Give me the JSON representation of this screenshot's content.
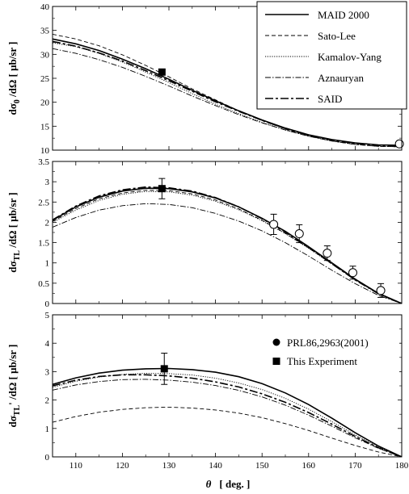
{
  "chart_data": [
    {
      "type": "line",
      "ylabel_main": "dσ",
      "ylabel_sub": "0",
      "ylabel_rest": "/dΩ [ μb/sr ]",
      "xlim": [
        105,
        180
      ],
      "ylim": [
        10,
        40
      ],
      "yticks": [
        10,
        15,
        20,
        25,
        30,
        35,
        40
      ],
      "ytick_labels": [
        "10",
        "15",
        "20",
        "25",
        "30",
        "35",
        "40"
      ],
      "legend": {
        "position": "top-right",
        "entries": [
          "MAID 2000",
          "Sato-Lee",
          "Kamalov-Yang",
          "Aznauryan",
          "SAID"
        ]
      },
      "series": [
        {
          "name": "MAID 2000",
          "x": [
            105,
            110,
            115,
            120,
            125,
            130,
            135,
            140,
            145,
            150,
            155,
            160,
            165,
            170,
            175,
            180
          ],
          "values": [
            33.2,
            32.2,
            30.8,
            29.0,
            27.0,
            24.8,
            22.5,
            20.3,
            18.2,
            16.3,
            14.6,
            13.2,
            12.2,
            11.5,
            11.1,
            11.0
          ]
        },
        {
          "name": "Sato-Lee",
          "x": [
            105,
            110,
            115,
            120,
            125,
            130,
            135,
            140,
            145,
            150,
            155,
            160,
            165,
            170,
            175,
            180
          ],
          "values": [
            34.2,
            33.2,
            31.8,
            29.9,
            27.7,
            25.3,
            22.8,
            20.5,
            18.2,
            16.2,
            14.4,
            13.0,
            11.9,
            11.2,
            10.8,
            10.7
          ]
        },
        {
          "name": "Kamalov-Yang",
          "x": [
            105,
            110,
            115,
            120,
            125,
            130,
            135,
            140,
            145,
            150,
            155,
            160,
            165,
            170,
            175,
            180
          ],
          "values": [
            32.4,
            31.6,
            30.2,
            28.4,
            26.3,
            24.1,
            21.8,
            19.6,
            17.6,
            15.8,
            14.2,
            12.9,
            11.9,
            11.2,
            10.8,
            10.7
          ]
        },
        {
          "name": "Aznauryan",
          "x": [
            105,
            110,
            115,
            120,
            125,
            130,
            135,
            140,
            145,
            150,
            155,
            160,
            165,
            170,
            175,
            180
          ],
          "values": [
            31.2,
            30.2,
            28.9,
            27.3,
            25.4,
            23.4,
            21.3,
            19.3,
            17.4,
            15.7,
            14.2,
            12.9,
            11.9,
            11.2,
            10.8,
            10.7
          ]
        },
        {
          "name": "SAID",
          "x": [
            105,
            110,
            115,
            120,
            125,
            130,
            135,
            140,
            145,
            150,
            155,
            160,
            165,
            170,
            175,
            180
          ],
          "values": [
            32.7,
            31.7,
            30.3,
            28.6,
            26.6,
            24.5,
            22.3,
            20.1,
            18.1,
            16.2,
            14.5,
            13.1,
            12.1,
            11.4,
            11.0,
            10.9
          ]
        }
      ],
      "points": [
        {
          "set": "This Experiment",
          "x": 128.5,
          "y": 26.3,
          "err": 0
        },
        {
          "set": "PRL86,2963(2001)",
          "x": 179.5,
          "y": 11.3,
          "err": 0
        }
      ]
    },
    {
      "type": "line",
      "ylabel_main": "dσ",
      "ylabel_sub": "TL",
      "ylabel_rest": "/dΩ [ μb/sr ]",
      "xlim": [
        105,
        180
      ],
      "ylim": [
        0,
        3.5
      ],
      "yticks": [
        0,
        0.5,
        1,
        1.5,
        2,
        2.5,
        3,
        3.5
      ],
      "ytick_labels": [
        "0",
        "0.5",
        "1",
        "1.5",
        "2",
        "2.5",
        "3",
        "3.5"
      ],
      "series": [
        {
          "name": "MAID 2000",
          "x": [
            105,
            110,
            115,
            120,
            125,
            130,
            135,
            140,
            145,
            150,
            155,
            160,
            165,
            170,
            175,
            180
          ],
          "values": [
            2.05,
            2.38,
            2.62,
            2.77,
            2.84,
            2.83,
            2.75,
            2.6,
            2.38,
            2.1,
            1.78,
            1.4,
            1.0,
            0.6,
            0.25,
            0.0
          ]
        },
        {
          "name": "Sato-Lee",
          "x": [
            105,
            110,
            115,
            120,
            125,
            130,
            135,
            140,
            145,
            150,
            155,
            160,
            165,
            170,
            175,
            180
          ],
          "values": [
            2.02,
            2.34,
            2.58,
            2.72,
            2.79,
            2.78,
            2.7,
            2.55,
            2.33,
            2.05,
            1.73,
            1.37,
            0.98,
            0.59,
            0.24,
            0.0
          ]
        },
        {
          "name": "Kamalov-Yang",
          "x": [
            105,
            110,
            115,
            120,
            125,
            130,
            135,
            140,
            145,
            150,
            155,
            160,
            165,
            170,
            175,
            180
          ],
          "values": [
            2.0,
            2.3,
            2.54,
            2.69,
            2.76,
            2.75,
            2.67,
            2.52,
            2.31,
            2.04,
            1.72,
            1.36,
            0.97,
            0.58,
            0.24,
            0.0
          ]
        },
        {
          "name": "Aznauryan",
          "x": [
            105,
            110,
            115,
            120,
            125,
            130,
            135,
            140,
            145,
            150,
            155,
            160,
            165,
            170,
            175,
            180
          ],
          "values": [
            1.88,
            2.12,
            2.3,
            2.41,
            2.46,
            2.44,
            2.36,
            2.22,
            2.03,
            1.79,
            1.5,
            1.17,
            0.82,
            0.49,
            0.2,
            0.0
          ]
        },
        {
          "name": "SAID",
          "x": [
            105,
            110,
            115,
            120,
            125,
            130,
            135,
            140,
            145,
            150,
            155,
            160,
            165,
            170,
            175,
            180
          ],
          "values": [
            2.06,
            2.4,
            2.65,
            2.8,
            2.87,
            2.85,
            2.77,
            2.61,
            2.38,
            2.09,
            1.76,
            1.38,
            0.98,
            0.58,
            0.24,
            0.0
          ]
        }
      ],
      "points": [
        {
          "set": "This Experiment",
          "x": 128.5,
          "y": 2.83,
          "err": 0.25
        },
        {
          "set": "PRL86,2963(2001)",
          "x": 152.5,
          "y": 1.95,
          "err": 0.25
        },
        {
          "set": "PRL86,2963(2001)",
          "x": 158.0,
          "y": 1.72,
          "err": 0.22
        },
        {
          "set": "PRL86,2963(2001)",
          "x": 164.0,
          "y": 1.24,
          "err": 0.18
        },
        {
          "set": "PRL86,2963(2001)",
          "x": 169.5,
          "y": 0.76,
          "err": 0.16
        },
        {
          "set": "PRL86,2963(2001)",
          "x": 175.5,
          "y": 0.32,
          "err": 0.17
        }
      ]
    },
    {
      "type": "line",
      "ylabel_main": "dσ",
      "ylabel_sub": "TL",
      "ylabel_prime": "'",
      "ylabel_rest": "/dΩ [ μb/sr ]",
      "xlabel_symbol": "θ",
      "xlabel_unit": "[ deg. ]",
      "xlim": [
        105,
        180
      ],
      "ylim": [
        0,
        5
      ],
      "xticks": [
        110,
        120,
        130,
        140,
        150,
        160,
        170,
        180
      ],
      "xtick_labels": [
        "110",
        "120",
        "130",
        "140",
        "150",
        "160",
        "170",
        "180"
      ],
      "yticks": [
        0,
        1,
        2,
        3,
        4,
        5
      ],
      "ytick_labels": [
        "0",
        "1",
        "2",
        "3",
        "4",
        "5"
      ],
      "legend": {
        "position": "top-right",
        "entries": [
          "PRL86,2963(2001)",
          "This Experiment"
        ]
      },
      "series": [
        {
          "name": "MAID 2000",
          "x": [
            105,
            110,
            115,
            120,
            125,
            130,
            135,
            140,
            145,
            150,
            155,
            160,
            165,
            170,
            175,
            180
          ],
          "values": [
            2.55,
            2.78,
            2.95,
            3.05,
            3.1,
            3.11,
            3.07,
            2.98,
            2.82,
            2.58,
            2.25,
            1.84,
            1.36,
            0.85,
            0.38,
            0.0
          ]
        },
        {
          "name": "Sato-Lee",
          "x": [
            105,
            110,
            115,
            120,
            125,
            130,
            135,
            140,
            145,
            150,
            155,
            160,
            165,
            170,
            175,
            180
          ],
          "values": [
            1.22,
            1.42,
            1.57,
            1.67,
            1.73,
            1.75,
            1.72,
            1.65,
            1.54,
            1.38,
            1.17,
            0.93,
            0.66,
            0.4,
            0.17,
            0.0
          ]
        },
        {
          "name": "Kamalov-Yang",
          "x": [
            105,
            110,
            115,
            120,
            125,
            130,
            135,
            140,
            145,
            150,
            155,
            160,
            165,
            170,
            175,
            180
          ],
          "values": [
            2.45,
            2.66,
            2.81,
            2.9,
            2.94,
            2.93,
            2.88,
            2.77,
            2.6,
            2.37,
            2.06,
            1.68,
            1.24,
            0.77,
            0.34,
            0.0
          ]
        },
        {
          "name": "Aznauryan",
          "x": [
            105,
            110,
            115,
            120,
            125,
            130,
            135,
            140,
            145,
            150,
            155,
            160,
            165,
            170,
            175,
            180
          ],
          "values": [
            2.35,
            2.53,
            2.65,
            2.72,
            2.73,
            2.7,
            2.63,
            2.51,
            2.34,
            2.11,
            1.82,
            1.47,
            1.08,
            0.67,
            0.3,
            0.0
          ]
        },
        {
          "name": "SAID",
          "x": [
            105,
            110,
            115,
            120,
            125,
            130,
            135,
            140,
            145,
            150,
            155,
            160,
            165,
            170,
            175,
            180
          ],
          "values": [
            2.5,
            2.7,
            2.83,
            2.89,
            2.89,
            2.85,
            2.77,
            2.64,
            2.46,
            2.22,
            1.92,
            1.56,
            1.15,
            0.72,
            0.32,
            0.0
          ]
        }
      ],
      "points": [
        {
          "set": "This Experiment",
          "x": 129.0,
          "y": 3.1,
          "err": 0.55
        }
      ]
    }
  ]
}
